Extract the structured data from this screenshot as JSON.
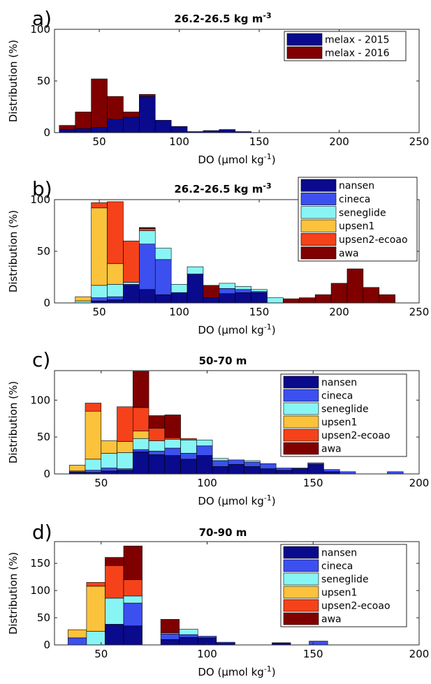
{
  "chart_data": [
    {
      "type": "bar",
      "panel_label": "a)",
      "title_main": "26.2-26.5 kg m",
      "title_sup": "-3",
      "xlabel_main": "DO (µmol kg",
      "xlabel_sup": "-1",
      "xlabel_end": ")",
      "ylabel": "Distribution (%)",
      "xlim": [
        22,
        250
      ],
      "ylim": [
        0,
        100
      ],
      "xticks": [
        50,
        100,
        150,
        200,
        250
      ],
      "yticks": [
        0,
        50,
        100
      ],
      "bin_width": 10,
      "categories": [
        30,
        40,
        50,
        60,
        70,
        80,
        90,
        100,
        110,
        120,
        130,
        140,
        150
      ],
      "series": [
        {
          "name": "melax - 2015",
          "color": "#0a0a8c",
          "values": [
            3,
            4,
            5,
            13,
            15,
            35,
            12,
            6,
            1,
            2,
            3,
            1,
            0
          ]
        },
        {
          "name": "melax - 2016",
          "color": "#800000",
          "values": [
            4,
            16,
            47,
            22,
            5,
            2,
            0,
            0,
            0,
            0,
            0,
            0,
            0
          ]
        }
      ],
      "legend_position": "top-right",
      "grid": false
    },
    {
      "type": "bar",
      "panel_label": "b)",
      "title_main": "26.2-26.5 kg m",
      "title_sup": "-3",
      "xlabel_main": "DO (µmol kg",
      "xlabel_sup": "-1",
      "xlabel_end": ")",
      "ylabel": "Distribution (%)",
      "xlim": [
        22,
        250
      ],
      "ylim": [
        0,
        100
      ],
      "xticks": [
        50,
        100,
        150,
        200,
        250
      ],
      "yticks": [
        0,
        50,
        100
      ],
      "bin_width": 10,
      "categories": [
        40,
        50,
        60,
        70,
        80,
        90,
        100,
        110,
        120,
        130,
        140,
        150,
        160,
        170,
        180,
        190,
        200,
        210,
        220,
        230
      ],
      "series": [
        {
          "name": "nansen",
          "color": "#0a0a8c",
          "values": [
            0,
            2,
            3,
            17,
            13,
            8,
            10,
            28,
            5,
            9,
            10,
            10,
            0,
            0,
            0,
            0,
            0,
            0,
            0,
            0
          ]
        },
        {
          "name": "cineca",
          "color": "#3c50f0",
          "values": [
            0,
            3,
            3,
            1,
            44,
            34,
            0,
            0,
            0,
            5,
            3,
            1,
            0,
            0,
            0,
            0,
            0,
            0,
            0,
            0
          ]
        },
        {
          "name": "seneglide",
          "color": "#88f5f5",
          "values": [
            2,
            12,
            12,
            2,
            13,
            11,
            8,
            7,
            0,
            5,
            3,
            2,
            5,
            0,
            0,
            0,
            0,
            0,
            0,
            0
          ]
        },
        {
          "name": "upsen1",
          "color": "#fbc23c",
          "values": [
            4,
            75,
            20,
            0,
            0,
            0,
            0,
            0,
            0,
            0,
            0,
            0,
            0,
            0,
            0,
            0,
            0,
            0,
            0,
            0
          ]
        },
        {
          "name": "upsen2-ecoao",
          "color": "#f5421a",
          "values": [
            0,
            5,
            60,
            40,
            2,
            0,
            0,
            0,
            0,
            0,
            0,
            0,
            0,
            0,
            0,
            0,
            0,
            0,
            0,
            0
          ]
        },
        {
          "name": "awa",
          "color": "#800000",
          "values": [
            0,
            0,
            0,
            0,
            1,
            0,
            0,
            0,
            12,
            0,
            0,
            0,
            0,
            4,
            5,
            8,
            19,
            33,
            15,
            8
          ]
        }
      ],
      "legend_position": "top-right",
      "grid": false
    },
    {
      "type": "bar",
      "panel_label": "c)",
      "title_main": "50-70 m",
      "title_sup": "",
      "xlabel_main": "DO (µmol kg",
      "xlabel_sup": "-1",
      "xlabel_end": ")",
      "ylabel": "Distribution (%)",
      "xlim": [
        28,
        200
      ],
      "ylim": [
        0,
        140
      ],
      "xticks": [
        50,
        100,
        150,
        200
      ],
      "yticks": [
        0,
        50,
        100
      ],
      "bin_width": 7.5,
      "categories": [
        38.75,
        46.25,
        53.75,
        61.25,
        68.75,
        76.25,
        83.75,
        91.25,
        98.75,
        106.25,
        113.75,
        121.25,
        128.75,
        136.25,
        143.75,
        151.25,
        158.75,
        166.25,
        173.75,
        181.25,
        188.75
      ],
      "series": [
        {
          "name": "nansen",
          "color": "#0a0a8c",
          "values": [
            2,
            2,
            4,
            5,
            30,
            26,
            25,
            20,
            25,
            10,
            13,
            10,
            7,
            5,
            7,
            13,
            3,
            0,
            0,
            0,
            0
          ]
        },
        {
          "name": "cineca",
          "color": "#3c50f0",
          "values": [
            1,
            3,
            4,
            2,
            3,
            5,
            10,
            8,
            13,
            8,
            6,
            6,
            7,
            3,
            1,
            2,
            3,
            3,
            0,
            0,
            3
          ]
        },
        {
          "name": "seneglide",
          "color": "#88f5f5",
          "values": [
            1,
            15,
            20,
            22,
            15,
            14,
            12,
            18,
            8,
            3,
            0,
            2,
            0,
            0,
            0,
            0,
            0,
            0,
            0,
            0,
            0
          ]
        },
        {
          "name": "upsen1",
          "color": "#fbc23c",
          "values": [
            8,
            65,
            17,
            15,
            10,
            0,
            0,
            0,
            0,
            0,
            0,
            0,
            0,
            0,
            0,
            0,
            0,
            0,
            0,
            0,
            0
          ]
        },
        {
          "name": "upsen2-ecoao",
          "color": "#f5421a",
          "values": [
            0,
            11,
            0,
            47,
            32,
            17,
            2,
            2,
            0,
            0,
            0,
            0,
            0,
            0,
            0,
            0,
            0,
            0,
            0,
            0,
            0
          ]
        },
        {
          "name": "awa",
          "color": "#800000",
          "values": [
            0,
            0,
            0,
            0,
            49,
            17,
            31,
            0,
            0,
            0,
            0,
            0,
            0,
            0,
            0,
            0,
            0,
            0,
            0,
            0,
            0
          ]
        }
      ],
      "legend_position": "top-right",
      "grid": false
    },
    {
      "type": "bar",
      "panel_label": "d)",
      "title_main": "70-90 m",
      "title_sup": "",
      "xlabel_main": "DO (µmol kg",
      "xlabel_sup": "-1",
      "xlabel_end": ")",
      "ylabel": "Distribution (%)",
      "xlim": [
        28,
        200
      ],
      "ylim": [
        0,
        190
      ],
      "xticks": [
        50,
        100,
        150,
        200
      ],
      "yticks": [
        0,
        50,
        100,
        150
      ],
      "bin_width": 8.75,
      "categories": [
        38.75,
        47.5,
        56.25,
        65,
        73.75,
        82.5,
        91.25,
        100,
        108.75,
        117.5,
        126.25,
        135,
        143.75,
        152.5
      ],
      "series": [
        {
          "name": "nansen",
          "color": "#0a0a8c",
          "values": [
            0,
            0,
            38,
            35,
            0,
            10,
            14,
            13,
            3,
            0,
            0,
            3,
            0,
            0
          ]
        },
        {
          "name": "cineca",
          "color": "#3c50f0",
          "values": [
            13,
            0,
            0,
            42,
            0,
            10,
            5,
            3,
            2,
            0,
            0,
            1,
            0,
            7
          ]
        },
        {
          "name": "seneglide",
          "color": "#88f5f5",
          "values": [
            0,
            25,
            48,
            13,
            0,
            2,
            10,
            0,
            0,
            0,
            0,
            0,
            0,
            0
          ]
        },
        {
          "name": "upsen1",
          "color": "#fbc23c",
          "values": [
            15,
            83,
            0,
            0,
            0,
            0,
            0,
            0,
            0,
            0,
            0,
            0,
            0,
            0
          ]
        },
        {
          "name": "upsen2-ecoao",
          "color": "#f5421a",
          "values": [
            0,
            7,
            60,
            30,
            0,
            0,
            0,
            0,
            0,
            0,
            0,
            0,
            0,
            0
          ]
        },
        {
          "name": "awa",
          "color": "#800000",
          "values": [
            0,
            0,
            15,
            62,
            0,
            25,
            0,
            0,
            0,
            0,
            0,
            0,
            0,
            0
          ]
        }
      ],
      "legend_position": "top-right",
      "grid": false
    }
  ]
}
